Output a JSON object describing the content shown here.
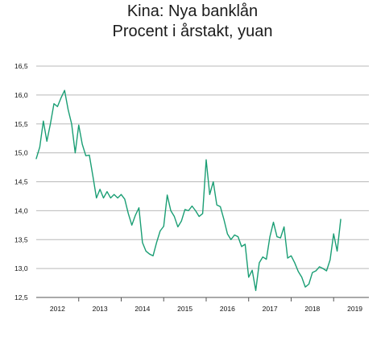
{
  "colors": {
    "series": "#1a9e74",
    "grid": "#b9b9b9",
    "axis": "#555555"
  },
  "chart_data": {
    "type": "line",
    "title": "Kina: Nya banklån",
    "subtitle": "Procent i årstakt, yuan",
    "xlabel": "",
    "ylabel": "",
    "ylim": [
      12.5,
      16.5
    ],
    "yticks": [
      "12,5",
      "13,0",
      "13,5",
      "14,0",
      "14,5",
      "15,0",
      "15,5",
      "16,0",
      "16,5"
    ],
    "ytick_values": [
      12.5,
      13.0,
      13.5,
      14.0,
      14.5,
      15.0,
      15.5,
      16.0,
      16.5
    ],
    "xlim": [
      2012.0,
      2019.83
    ],
    "xticks": [
      "2012",
      "2013",
      "2014",
      "2015",
      "2016",
      "2017",
      "2018",
      "2019"
    ],
    "xtick_centers": [
      2012.5,
      2013.5,
      2014.5,
      2015.5,
      2016.5,
      2017.5,
      2018.5,
      2019.5
    ],
    "xtick_boundaries": [
      2013,
      2014,
      2015,
      2016,
      2017,
      2018,
      2019
    ],
    "grid": true,
    "series": [
      {
        "name": "",
        "x": [
          2012.0,
          2012.083,
          2012.167,
          2012.25,
          2012.333,
          2012.417,
          2012.5,
          2012.583,
          2012.667,
          2012.75,
          2012.833,
          2012.917,
          2013.0,
          2013.083,
          2013.167,
          2013.25,
          2013.333,
          2013.417,
          2013.5,
          2013.583,
          2013.667,
          2013.75,
          2013.833,
          2013.917,
          2014.0,
          2014.083,
          2014.167,
          2014.25,
          2014.333,
          2014.417,
          2014.5,
          2014.583,
          2014.667,
          2014.75,
          2014.833,
          2014.917,
          2015.0,
          2015.083,
          2015.167,
          2015.25,
          2015.333,
          2015.417,
          2015.5,
          2015.583,
          2015.667,
          2015.75,
          2015.833,
          2015.917,
          2016.0,
          2016.083,
          2016.167,
          2016.25,
          2016.333,
          2016.417,
          2016.5,
          2016.583,
          2016.667,
          2016.75,
          2016.833,
          2016.917,
          2017.0,
          2017.083,
          2017.167,
          2017.25,
          2017.333,
          2017.417,
          2017.5,
          2017.583,
          2017.667,
          2017.75,
          2017.833,
          2017.917,
          2018.0,
          2018.083,
          2018.167,
          2018.25,
          2018.333,
          2018.417,
          2018.5,
          2018.583,
          2018.667,
          2018.75,
          2018.833,
          2018.917,
          2019.0,
          2019.083,
          2019.167
        ],
        "y": [
          14.9,
          15.1,
          15.55,
          15.2,
          15.5,
          15.85,
          15.8,
          15.95,
          16.08,
          15.75,
          15.5,
          15.0,
          15.48,
          15.15,
          14.95,
          14.96,
          14.6,
          14.22,
          14.37,
          14.22,
          14.33,
          14.22,
          14.28,
          14.22,
          14.28,
          14.2,
          13.95,
          13.75,
          13.92,
          14.05,
          13.45,
          13.3,
          13.25,
          13.22,
          13.45,
          13.65,
          13.73,
          14.27,
          14.0,
          13.9,
          13.72,
          13.82,
          14.02,
          14.0,
          14.08,
          14.0,
          13.9,
          13.95,
          14.88,
          14.28,
          14.5,
          14.1,
          14.07,
          13.85,
          13.6,
          13.5,
          13.58,
          13.55,
          13.38,
          13.42,
          12.85,
          12.97,
          12.62,
          13.1,
          13.2,
          13.16,
          13.55,
          13.8,
          13.55,
          13.53,
          13.72,
          13.18,
          13.22,
          13.1,
          12.95,
          12.85,
          12.68,
          12.73,
          12.93,
          12.96,
          13.03,
          13.0,
          12.96,
          13.15,
          13.6,
          13.3,
          13.85
        ]
      }
    ]
  }
}
